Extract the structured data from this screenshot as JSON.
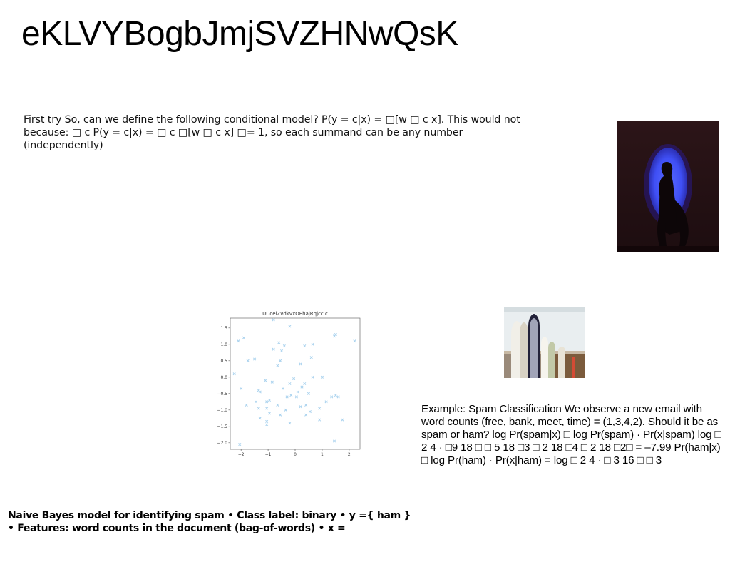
{
  "slide": {
    "title": "eKLVYBogbJmjSVZHNwQsK",
    "paragraph_top": "First try So, can we define the following conditional model? P(y = c|x) = □[w □ c x]. This would not because: □ c P(y = c|x) = □ c □[w □ c x] □= 1, so each summand can be any number (independently)",
    "paragraph_example": "Example: Spam Classification We observe a new email with word counts (free, bank, meet, time) = (1,3,4,2). Should it be as spam or ham? log Pr(spam|x) □ log Pr(spam) · Pr(x|spam) log □ 2 4 · □9 18 □ □ 5 18 □3 □ 2 18 □4 □ 2 18 □2□ = –7.99 Pr(ham|x) □ log Pr(ham) · Pr(x|ham) = log □ 2 4 · □ 3 16 □ □ 3",
    "paragraph_bottom": "Naive Bayes model for identifying spam • Class label: binary • y ={ ham } • Features: word counts in the document (bag-of-words) • x ="
  },
  "images": {
    "silhouette_photo": "photo of a silhouetted woman seated in front of a blue circular light",
    "surfboards_photo": "photo of surfboards leaning against a wall"
  },
  "colors": {
    "marker": "#a9d2ee",
    "photo_bg": "#2a1417",
    "spot_blue": "#3f54ff"
  },
  "chart_data": {
    "type": "scatter",
    "title": "UUceiZvdkvxOEhajRqjcc c",
    "xlabel": "",
    "ylabel": "",
    "xlim": [
      -2.4,
      2.4
    ],
    "ylim": [
      -2.2,
      1.8
    ],
    "xticks": [
      -2,
      -1,
      0,
      1,
      2
    ],
    "xtick_labels": [
      "−2",
      "−1",
      "0",
      "1",
      "2"
    ],
    "yticks": [
      1.5,
      1.0,
      0.5,
      0.0,
      -0.5,
      -1.0,
      -1.5,
      -2.0
    ],
    "ytick_labels": [
      "1.5",
      "1.0",
      "0.5",
      "0.0",
      "−0.5",
      "−1.0",
      "−1.5",
      "−2.0"
    ],
    "marker": "x",
    "grid": false,
    "points": [
      [
        -0.8,
        1.75
      ],
      [
        -2.1,
        1.1
      ],
      [
        -1.9,
        1.2
      ],
      [
        -0.2,
        1.55
      ],
      [
        1.5,
        1.3
      ],
      [
        1.45,
        1.25
      ],
      [
        2.2,
        1.1
      ],
      [
        -0.6,
        1.05
      ],
      [
        -0.4,
        0.95
      ],
      [
        0.35,
        0.95
      ],
      [
        0.65,
        1.0
      ],
      [
        -0.8,
        0.85
      ],
      [
        -0.5,
        0.8
      ],
      [
        0.6,
        0.6
      ],
      [
        -1.75,
        0.5
      ],
      [
        -1.5,
        0.55
      ],
      [
        -0.55,
        0.5
      ],
      [
        -0.65,
        0.35
      ],
      [
        0.2,
        0.4
      ],
      [
        -2.25,
        0.1
      ],
      [
        0.65,
        0.0
      ],
      [
        1.0,
        0.0
      ],
      [
        -1.1,
        -0.1
      ],
      [
        -0.05,
        -0.05
      ],
      [
        -0.2,
        -0.2
      ],
      [
        0.35,
        -0.2
      ],
      [
        0.25,
        -0.3
      ],
      [
        -2.0,
        -0.35
      ],
      [
        -1.35,
        -0.4
      ],
      [
        -1.3,
        -0.45
      ],
      [
        -0.45,
        -0.35
      ],
      [
        0.1,
        -0.45
      ],
      [
        0.5,
        -0.5
      ],
      [
        -0.15,
        -0.55
      ],
      [
        -0.3,
        -0.6
      ],
      [
        1.35,
        -0.6
      ],
      [
        1.5,
        -0.55
      ],
      [
        1.6,
        -0.6
      ],
      [
        -1.05,
        -0.75
      ],
      [
        -0.95,
        -0.7
      ],
      [
        -1.45,
        -0.75
      ],
      [
        1.15,
        -0.75
      ],
      [
        0.4,
        -0.85
      ],
      [
        -0.65,
        -0.85
      ],
      [
        -1.8,
        -0.85
      ],
      [
        -1.05,
        -0.95
      ],
      [
        -1.35,
        -0.95
      ],
      [
        0.2,
        -0.9
      ],
      [
        -0.35,
        -1.0
      ],
      [
        0.9,
        -0.95
      ],
      [
        0.55,
        -1.05
      ],
      [
        -0.95,
        -1.1
      ],
      [
        -0.55,
        -1.15
      ],
      [
        -1.3,
        -1.25
      ],
      [
        -1.05,
        -1.35
      ],
      [
        1.75,
        -1.3
      ],
      [
        0.9,
        -1.3
      ],
      [
        -1.05,
        -1.45
      ],
      [
        -0.2,
        -1.4
      ],
      [
        1.45,
        -1.95
      ],
      [
        -2.05,
        -2.05
      ],
      [
        0.4,
        -1.15
      ],
      [
        0.05,
        -0.6
      ],
      [
        -0.85,
        -0.15
      ]
    ]
  }
}
